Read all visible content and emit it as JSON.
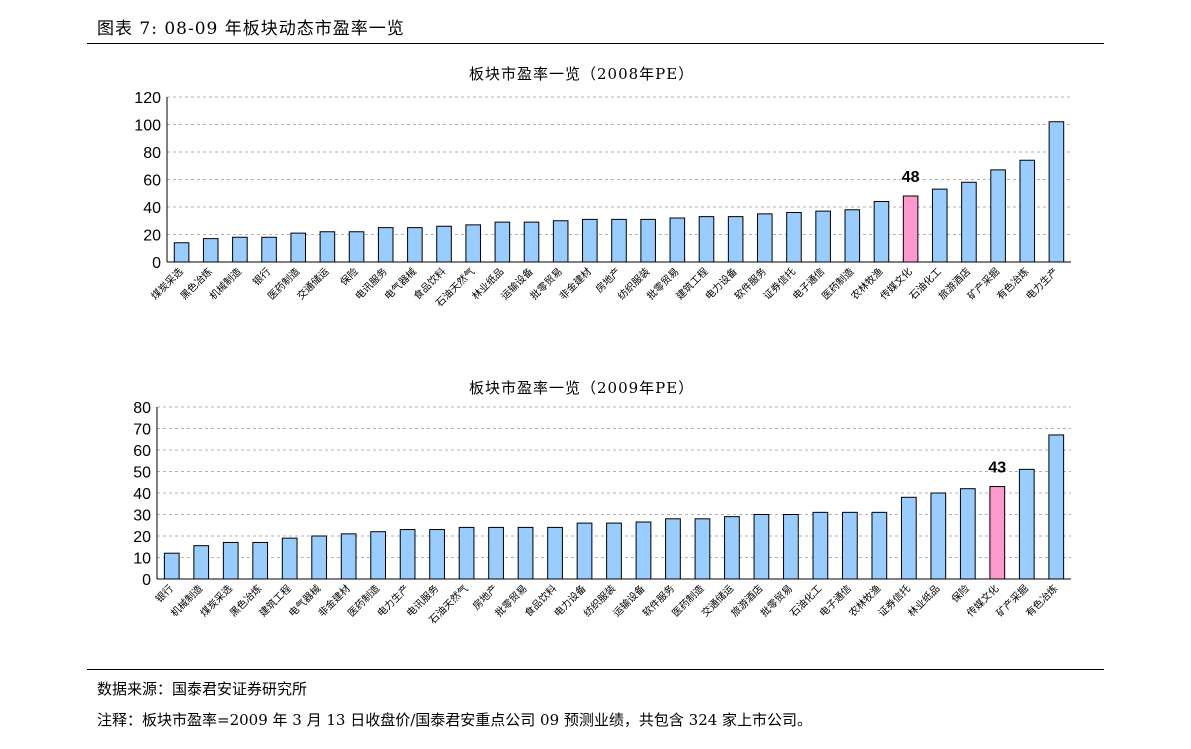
{
  "figure_title": "图表 7: 08-09 年板块动态市盈率一览",
  "source": "数据来源：国泰君安证券研究所",
  "note": "注释：板块市盈率=2009 年 3 月 13 日收盘价/国泰君安重点公司 09 预测业绩，共包含 324 家上市公司。",
  "colors": {
    "bar": "#99CCFF",
    "highlight": "#FF99CC",
    "stroke": "#000000"
  },
  "chart_data": [
    {
      "type": "bar",
      "title": "板块市盈率一览（2008年PE）",
      "xlabel": "",
      "ylabel": "",
      "ylim": [
        0,
        120
      ],
      "yticks": [
        0,
        20,
        40,
        60,
        80,
        100,
        120
      ],
      "grid": true,
      "categories": [
        "煤炭采选",
        "黑色冶炼",
        "机械制造",
        "银行",
        "医药制造",
        "交通储运",
        "保险",
        "电讯服务",
        "电气器械",
        "食品饮料",
        "石油天然气",
        "林业纸品",
        "运输设备",
        "批零贸易",
        "非金建材",
        "房地产",
        "纺织服装",
        "批零贸易",
        "建筑工程",
        "电力设备",
        "软件服务",
        "证券信托",
        "电子通信",
        "医药制造",
        "农林牧渔",
        "传媒文化",
        "石油化工",
        "旅游酒店",
        "矿产采掘",
        "有色冶炼",
        "电力生产"
      ],
      "values": [
        14,
        17,
        18,
        18,
        21,
        22,
        22,
        25,
        25,
        26,
        27,
        29,
        29,
        30,
        31,
        31,
        31,
        32,
        33,
        33,
        35,
        36,
        37,
        38,
        44,
        48,
        53,
        58,
        67,
        74,
        102
      ],
      "highlight_index": 25,
      "data_labels": [
        {
          "index": 25,
          "text": "48"
        }
      ]
    },
    {
      "type": "bar",
      "title": "板块市盈率一览（2009年PE）",
      "xlabel": "",
      "ylabel": "",
      "ylim": [
        0,
        80
      ],
      "yticks": [
        0,
        10,
        20,
        30,
        40,
        50,
        60,
        70,
        80
      ],
      "grid": true,
      "categories": [
        "银行",
        "机械制造",
        "煤炭采选",
        "黑色冶炼",
        "建筑工程",
        "电气器械",
        "非金建材",
        "医药制造",
        "电力生产",
        "电讯服务",
        "石油天然气",
        "房地产",
        "批零贸易",
        "食品饮料",
        "电力设备",
        "纺织服装",
        "运输设备",
        "软件服务",
        "医药制造",
        "交通储运",
        "旅游酒店",
        "批零贸易",
        "石油化工",
        "电子通信",
        "农林牧渔",
        "证券信托",
        "林业纸品",
        "保险",
        "传媒文化",
        "矿产采掘",
        "有色冶炼"
      ],
      "values": [
        12,
        15.5,
        17,
        17,
        19,
        20,
        21,
        22,
        23,
        23,
        24,
        24,
        24,
        24,
        26,
        26,
        26.5,
        28,
        28,
        29,
        30,
        30,
        31,
        31,
        31,
        38,
        40,
        42,
        43,
        51,
        67
      ],
      "highlight_index": 28,
      "data_labels": [
        {
          "index": 28,
          "text": "43"
        }
      ]
    }
  ]
}
